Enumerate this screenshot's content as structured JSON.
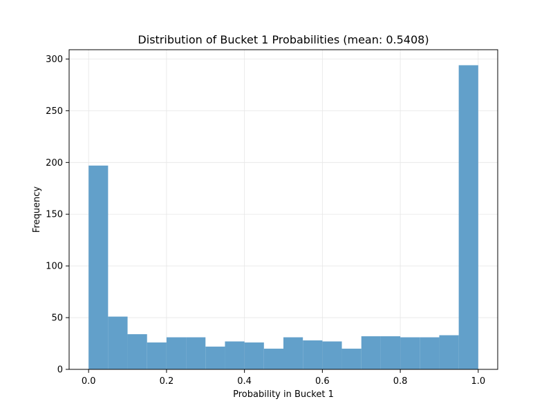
{
  "chart_data": {
    "type": "bar",
    "title": "Distribution of Bucket 1 Probabilities (mean: 0.5408)",
    "xlabel": "Probability in Bucket 1",
    "ylabel": "Frequency",
    "xlim": [
      -0.05,
      1.05
    ],
    "ylim": [
      0,
      309
    ],
    "grid": true,
    "bin_edges": [
      0.0,
      0.05,
      0.1,
      0.15,
      0.2,
      0.25,
      0.3,
      0.35,
      0.4,
      0.45,
      0.5,
      0.55,
      0.6,
      0.65,
      0.7,
      0.75,
      0.8,
      0.85,
      0.9,
      0.95,
      1.0
    ],
    "values": [
      197,
      51,
      34,
      26,
      31,
      31,
      22,
      27,
      26,
      20,
      31,
      28,
      27,
      20,
      32,
      32,
      31,
      31,
      33,
      294
    ],
    "x_ticks": [
      "0.0",
      "0.2",
      "0.4",
      "0.6",
      "0.8",
      "1.0"
    ],
    "x_tick_values": [
      0.0,
      0.2,
      0.4,
      0.6,
      0.8,
      1.0
    ],
    "y_ticks": [
      "0",
      "50",
      "100",
      "150",
      "200",
      "250",
      "300"
    ],
    "y_tick_values": [
      0,
      50,
      100,
      150,
      200,
      250,
      300
    ],
    "colors": {
      "bar": "#62a0ca",
      "grid": "#e6e6e6"
    }
  }
}
